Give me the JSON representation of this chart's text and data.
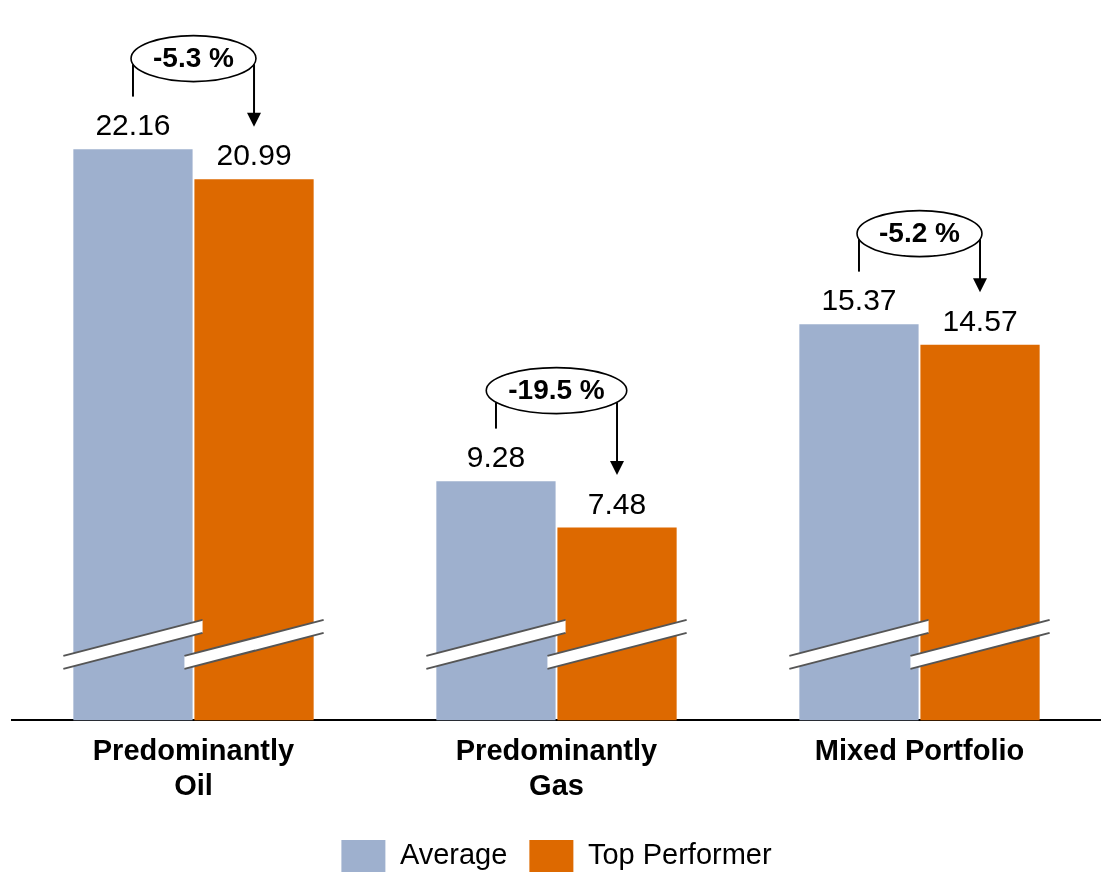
{
  "chart_data": {
    "type": "bar",
    "categories": [
      "Predominantly Oil",
      "Predominantly Gas",
      "Mixed Portfolio"
    ],
    "series": [
      {
        "name": "Average",
        "color": "#9eb0ce",
        "values": [
          22.16,
          9.28,
          15.37
        ]
      },
      {
        "name": "Top Performer",
        "color": "#dd6900",
        "values": [
          20.99,
          7.48,
          14.57
        ]
      }
    ],
    "data_labels": true,
    "legend": "bottom",
    "tick_labels": "x",
    "annotations": [
      "-5.3 %",
      "-19.5 %",
      "-5.2 %"
    ]
  }
}
